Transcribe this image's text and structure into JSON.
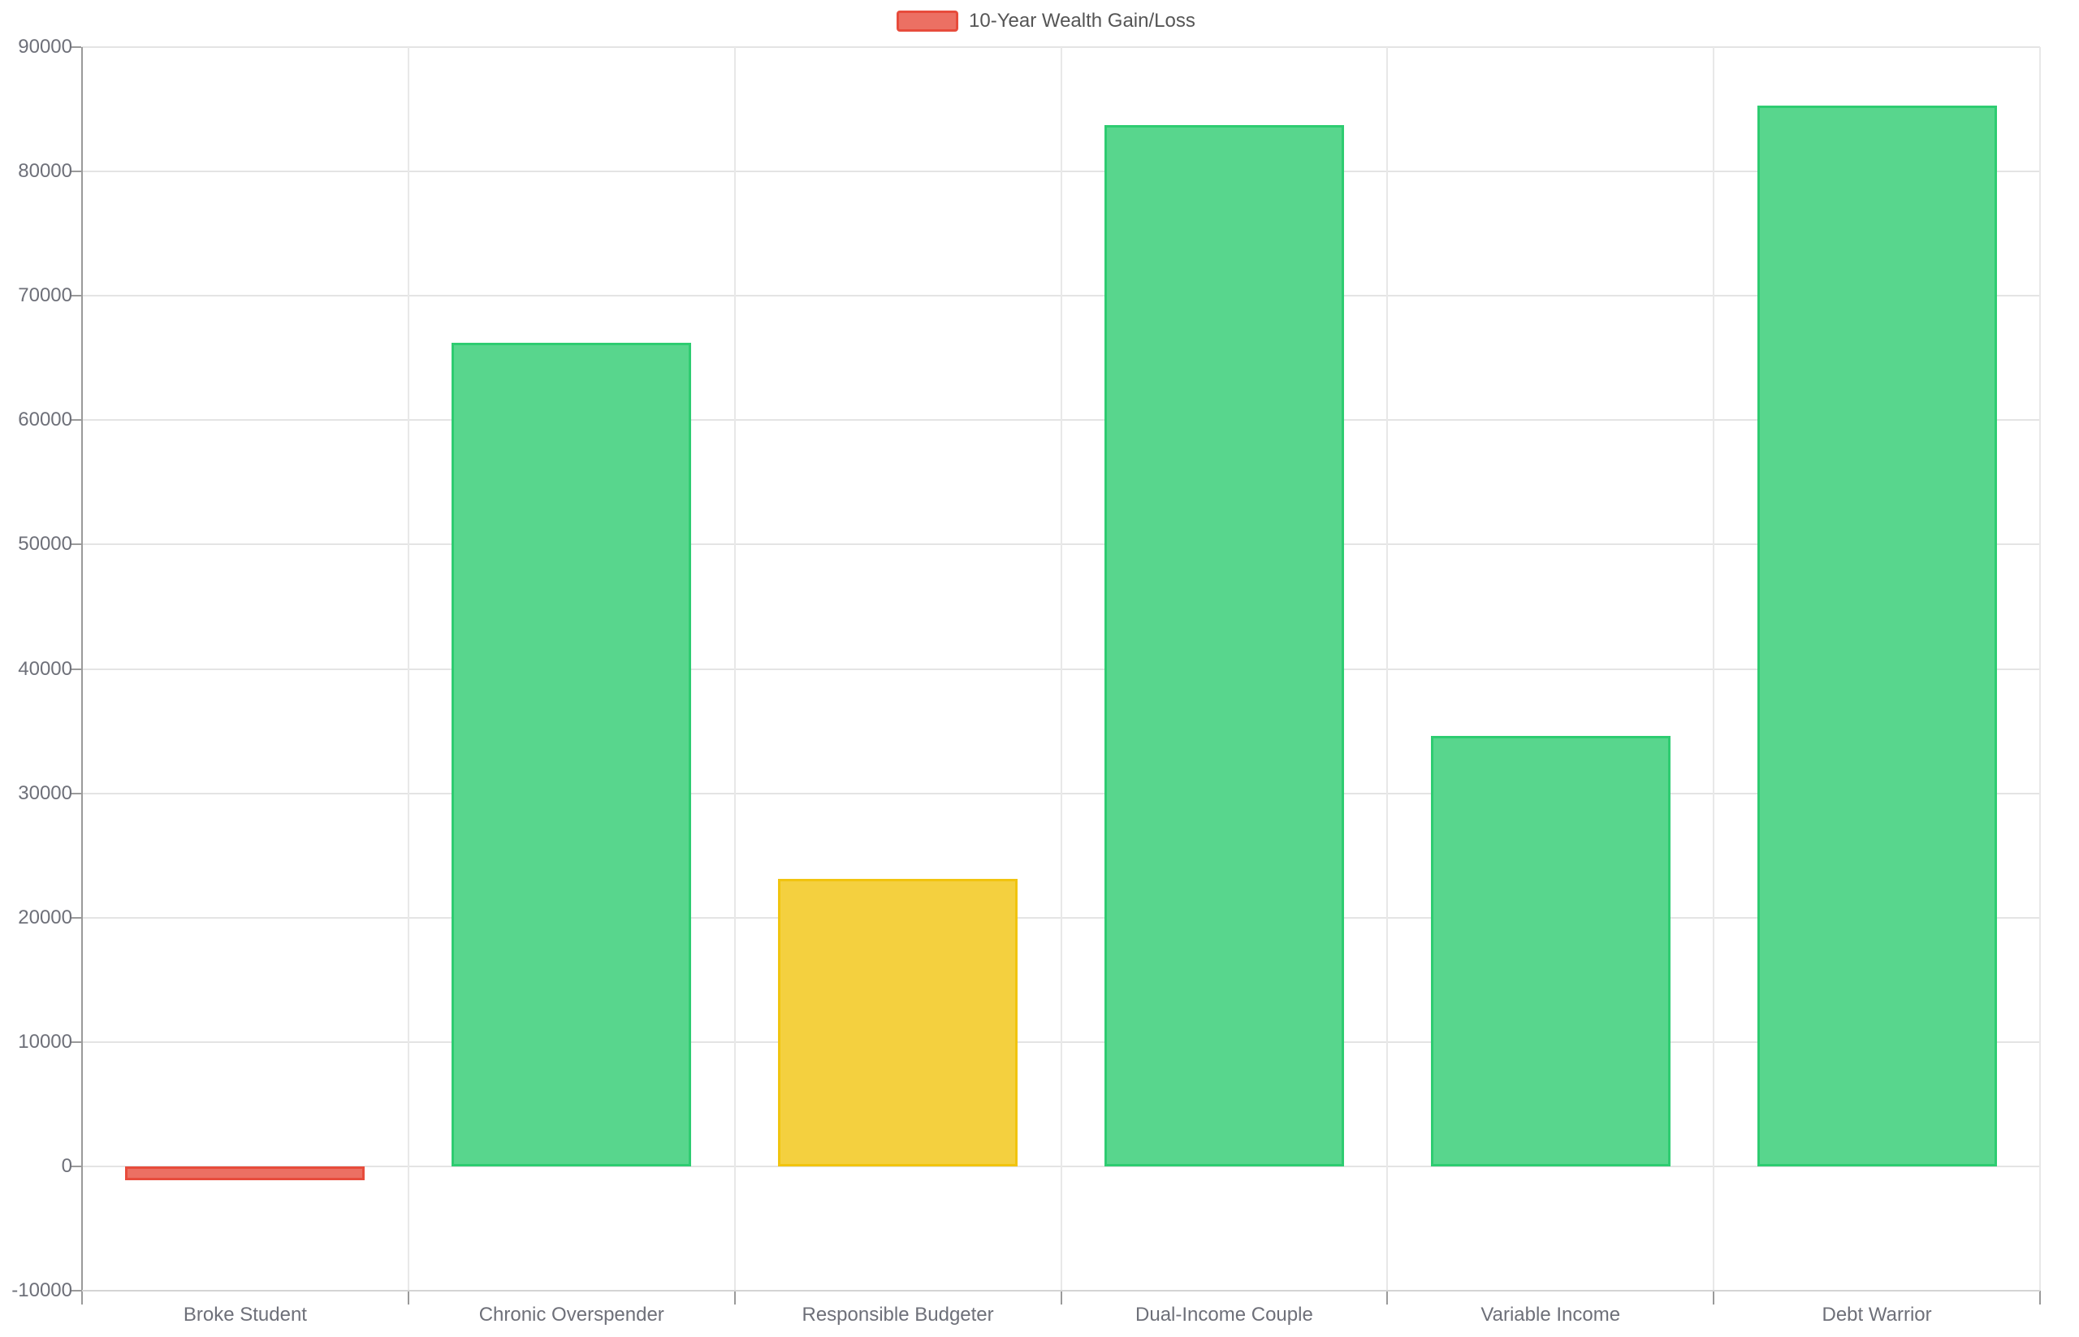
{
  "chart_data": {
    "type": "bar",
    "title": "",
    "categories": [
      "Broke Student",
      "Chronic Overspender",
      "Responsible Budgeter",
      "Dual-Income Couple",
      "Variable Income",
      "Debt Warrior"
    ],
    "series": [
      {
        "name": "10-Year Wealth Gain/Loss",
        "values": [
          -1100,
          66200,
          23100,
          83700,
          34600,
          85300
        ]
      }
    ],
    "bar_colors": [
      {
        "fill": "#ec7063",
        "border": "#e74c3c"
      },
      {
        "fill": "#58d68d",
        "border": "#2ecc71"
      },
      {
        "fill": "#f4d03f",
        "border": "#f1c40f"
      },
      {
        "fill": "#58d68d",
        "border": "#2ecc71"
      },
      {
        "fill": "#58d68d",
        "border": "#2ecc71"
      },
      {
        "fill": "#58d68d",
        "border": "#2ecc71"
      }
    ],
    "legend": {
      "label": "10-Year Wealth Gain/Loss",
      "swatch_fill": "#ec7063",
      "swatch_border": "#e74c3c",
      "position": "top-center"
    },
    "y_axis": {
      "min": -10000,
      "max": 90000,
      "interval": 10000,
      "tick_labels": [
        "-10000",
        "0",
        "10000",
        "20000",
        "30000",
        "40000",
        "50000",
        "60000",
        "70000",
        "80000",
        "90000"
      ]
    },
    "x_axis": {
      "tick_labels": [
        "Broke Student",
        "Chronic Overspender",
        "Responsible Budgeter",
        "Dual-Income Couple",
        "Variable Income",
        "Debt Warrior"
      ]
    },
    "grid": true,
    "background_color": "#ffffff",
    "colors": {
      "axis_line": "#9a9a9a",
      "grid_line": "#e6e6e6",
      "tick_label": "#6e7079",
      "legend_text": "#555555"
    }
  }
}
